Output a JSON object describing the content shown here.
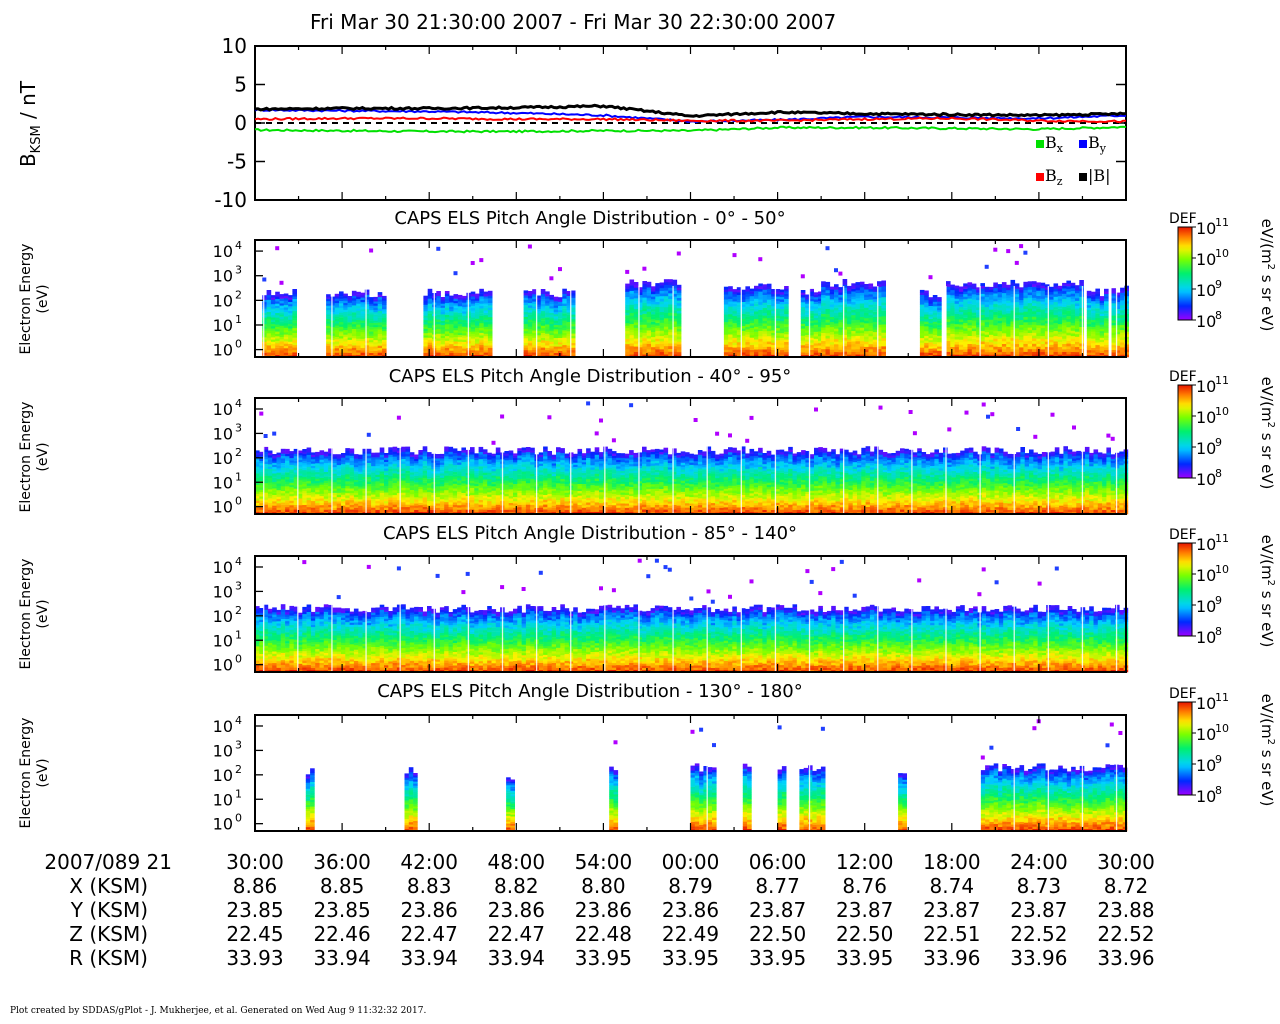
{
  "title": "Fri Mar 30 21:30:00 2007 - Fri Mar 30 22:30:00 2007",
  "footer": "Plot created by SDDAS/gPlot - J. Mukherjee, et al.  Generated on Wed Aug 9 11:32:32 2017.",
  "colors": {
    "bx": "#00e000",
    "by": "#0000ff",
    "bz": "#ff0000",
    "bmag": "#000000"
  },
  "chart_data": [
    {
      "type": "line",
      "ylabel": "B",
      "ylabel_sub": "KSM",
      "ylabel_unit": " / nT",
      "ylim": [
        -10,
        10
      ],
      "yticks": [
        "10",
        "5",
        "0",
        "-5",
        "-10"
      ],
      "x_minutes": [
        0,
        6,
        12,
        18,
        24,
        30,
        36,
        42,
        48,
        54,
        60
      ],
      "series": [
        {
          "name": "B",
          "sub": "x",
          "color": "#00e000",
          "values": [
            -0.9,
            -1.0,
            -1.1,
            -1.1,
            -1.0,
            -1.0,
            -0.6,
            -0.6,
            -0.7,
            -0.8,
            -0.5
          ]
        },
        {
          "name": "B",
          "sub": "y",
          "color": "#0000ff",
          "values": [
            1.7,
            1.6,
            1.5,
            1.3,
            1.0,
            0.2,
            0.4,
            0.8,
            0.7,
            0.6,
            1.0
          ]
        },
        {
          "name": "B",
          "sub": "z",
          "color": "#ff0000",
          "values": [
            0.5,
            0.6,
            0.6,
            0.5,
            0.5,
            0.3,
            0.3,
            0.5,
            0.6,
            0.3,
            0.2
          ]
        },
        {
          "name": "|B|",
          "sub": "",
          "color": "#000000",
          "values": [
            1.8,
            1.9,
            1.9,
            2.0,
            2.2,
            0.9,
            1.4,
            1.2,
            1.1,
            1.0,
            1.2
          ]
        }
      ],
      "zero_line": "dashed"
    },
    {
      "type": "heatmap",
      "title": "CAPS ELS Pitch Angle Distribution - 0° - 50°",
      "ylabel": "Electron Energy",
      "yunit": "(eV)",
      "y_scale": "log",
      "yticks": [
        "10",
        "10",
        "10",
        "10",
        "10"
      ],
      "ytick_exps": [
        "4",
        "3",
        "2",
        "1",
        "0"
      ],
      "data_minutes": [
        [
          0.5,
          2.8
        ],
        [
          4.9,
          9.0
        ],
        [
          11.6,
          16.1
        ],
        [
          18.5,
          21.8
        ],
        [
          25.5,
          29.3
        ],
        [
          32.3,
          36.5
        ],
        [
          37.6,
          38.9
        ],
        [
          39.0,
          43.3
        ],
        [
          45.8,
          47.2
        ],
        [
          47.6,
          56.8
        ],
        [
          57.3,
          58.5
        ],
        [
          59.0,
          60.0
        ]
      ],
      "cmax_eV": [
        200,
        200,
        200,
        200,
        500,
        400,
        200,
        500,
        200,
        500,
        200,
        300
      ],
      "colorbar": {
        "title": "DEF",
        "min_exp": 8,
        "max_exp": 11,
        "unit_pre": "eV/(m",
        "unit_sup": "2",
        "unit_post": " s sr eV)"
      }
    },
    {
      "type": "heatmap",
      "title": "CAPS ELS Pitch Angle Distribution - 40° - 95°",
      "ylabel": "Electron Energy",
      "yunit": "(eV)",
      "y_scale": "log",
      "yticks": [
        "10",
        "10",
        "10",
        "10",
        "10"
      ],
      "ytick_exps": [
        "4",
        "3",
        "2",
        "1",
        "0"
      ],
      "data_minutes": [
        [
          0,
          60
        ]
      ],
      "cmax_eV": [
        200
      ],
      "colorbar": {
        "title": "DEF",
        "min_exp": 8,
        "max_exp": 11,
        "unit_pre": "eV/(m",
        "unit_sup": "2",
        "unit_post": " s sr eV)"
      }
    },
    {
      "type": "heatmap",
      "title": "CAPS ELS Pitch Angle Distribution - 85° - 140°",
      "ylabel": "Electron Energy",
      "yunit": "(eV)",
      "y_scale": "log",
      "yticks": [
        "10",
        "10",
        "10",
        "10",
        "10"
      ],
      "ytick_exps": [
        "4",
        "3",
        "2",
        "1",
        "0"
      ],
      "data_minutes": [
        [
          0,
          60
        ]
      ],
      "cmax_eV": [
        200
      ],
      "colorbar": {
        "title": "DEF",
        "min_exp": 8,
        "max_exp": 11,
        "unit_pre": "eV/(m",
        "unit_sup": "2",
        "unit_post": " s sr eV)"
      }
    },
    {
      "type": "heatmap",
      "title": "CAPS ELS Pitch Angle Distribution - 130° - 180°",
      "ylabel": "Electron Energy",
      "yunit": "(eV)",
      "y_scale": "log",
      "yticks": [
        "10",
        "10",
        "10",
        "10",
        "10"
      ],
      "ytick_exps": [
        "4",
        "3",
        "2",
        "1",
        "0"
      ],
      "data_minutes": [
        [
          3.5,
          4.0
        ],
        [
          10.3,
          10.9
        ],
        [
          17.3,
          17.8
        ],
        [
          24.4,
          24.7
        ],
        [
          30.0,
          31.5
        ],
        [
          33.6,
          34.0
        ],
        [
          36.0,
          36.5
        ],
        [
          37.5,
          39.0
        ],
        [
          44.3,
          44.8
        ],
        [
          50.0,
          60.0
        ]
      ],
      "cmax_eV": [
        150,
        150,
        80,
        150,
        200,
        200,
        200,
        200,
        150,
        200
      ],
      "colorbar": {
        "title": "DEF",
        "min_exp": 8,
        "max_exp": 11,
        "unit_pre": "eV/(m",
        "unit_sup": "2",
        "unit_post": " s sr eV)"
      }
    }
  ],
  "time_axis": {
    "date_label": "2007/089 21",
    "ticks": [
      "30:00",
      "36:00",
      "42:00",
      "48:00",
      "54:00",
      "00:00",
      "06:00",
      "12:00",
      "18:00",
      "24:00",
      "30:00"
    ]
  },
  "ephemeris": [
    {
      "label": "X (KSM)",
      "values": [
        "8.86",
        "8.85",
        "8.83",
        "8.82",
        "8.80",
        "8.79",
        "8.77",
        "8.76",
        "8.74",
        "8.73",
        "8.72"
      ]
    },
    {
      "label": "Y (KSM)",
      "values": [
        "23.85",
        "23.85",
        "23.86",
        "23.86",
        "23.86",
        "23.86",
        "23.87",
        "23.87",
        "23.87",
        "23.87",
        "23.88"
      ]
    },
    {
      "label": "Z (KSM)",
      "values": [
        "22.45",
        "22.46",
        "22.47",
        "22.47",
        "22.48",
        "22.49",
        "22.50",
        "22.50",
        "22.51",
        "22.52",
        "22.52"
      ]
    },
    {
      "label": "R (KSM)",
      "values": [
        "33.93",
        "33.94",
        "33.94",
        "33.94",
        "33.95",
        "33.95",
        "33.95",
        "33.95",
        "33.96",
        "33.96",
        "33.96"
      ]
    }
  ]
}
